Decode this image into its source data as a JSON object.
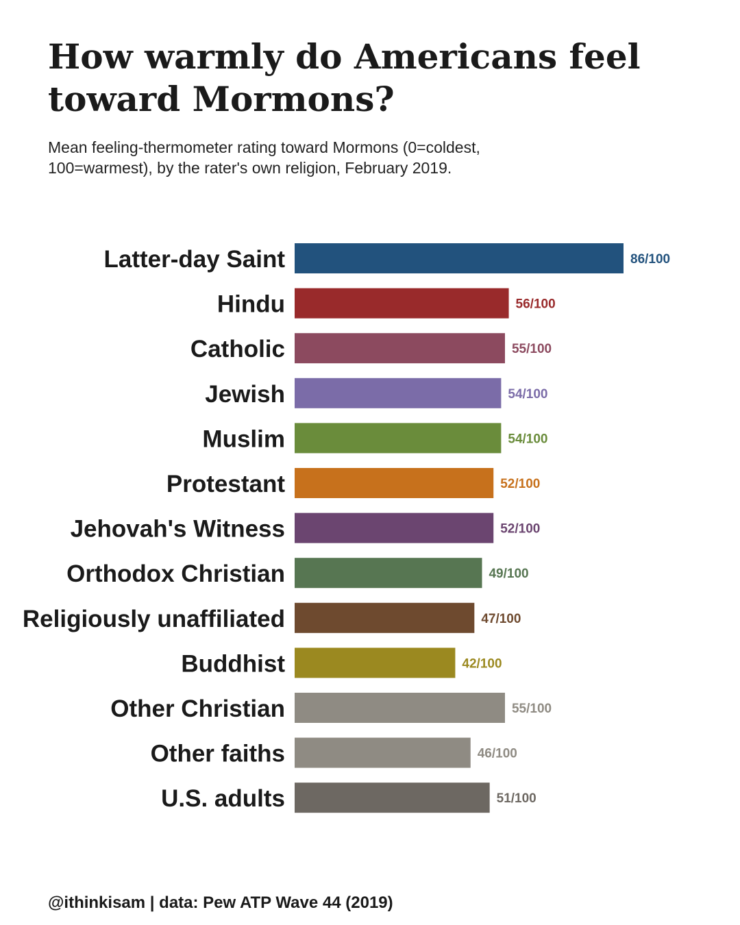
{
  "title": "How warmly do Americans feel toward Mormons?",
  "subtitle": "Mean feeling-thermometer rating toward Mormons (0=coldest, 100=warmest), by the rater's own religion, February 2019.",
  "footer": "@ithinkisam | data: Pew ATP Wave 44 (2019)",
  "chart_data": {
    "type": "bar",
    "orientation": "horizontal",
    "title": "How warmly do Americans feel toward Mormons?",
    "xlabel": "",
    "ylabel": "",
    "xlim": [
      0,
      100
    ],
    "grid": false,
    "value_suffix": "/100",
    "categories": [
      "Latter-day Saint",
      "Hindu",
      "Catholic",
      "Jewish",
      "Muslim",
      "Protestant",
      "Jehovah's Witness",
      "Orthodox Christian",
      "Religiously unaffiliated",
      "Buddhist",
      "Other Christian",
      "Other faiths",
      "U.S. adults"
    ],
    "values": [
      86,
      56,
      55,
      54,
      54,
      52,
      52,
      49,
      47,
      42,
      55,
      46,
      51
    ],
    "colors": [
      "#22527d",
      "#992a2b",
      "#8c4a5f",
      "#7b6ca8",
      "#6a8c3b",
      "#c7711c",
      "#6b4570",
      "#577652",
      "#6e4a2f",
      "#9b8920",
      "#8f8b83",
      "#8f8b83",
      "#6d6862"
    ]
  }
}
